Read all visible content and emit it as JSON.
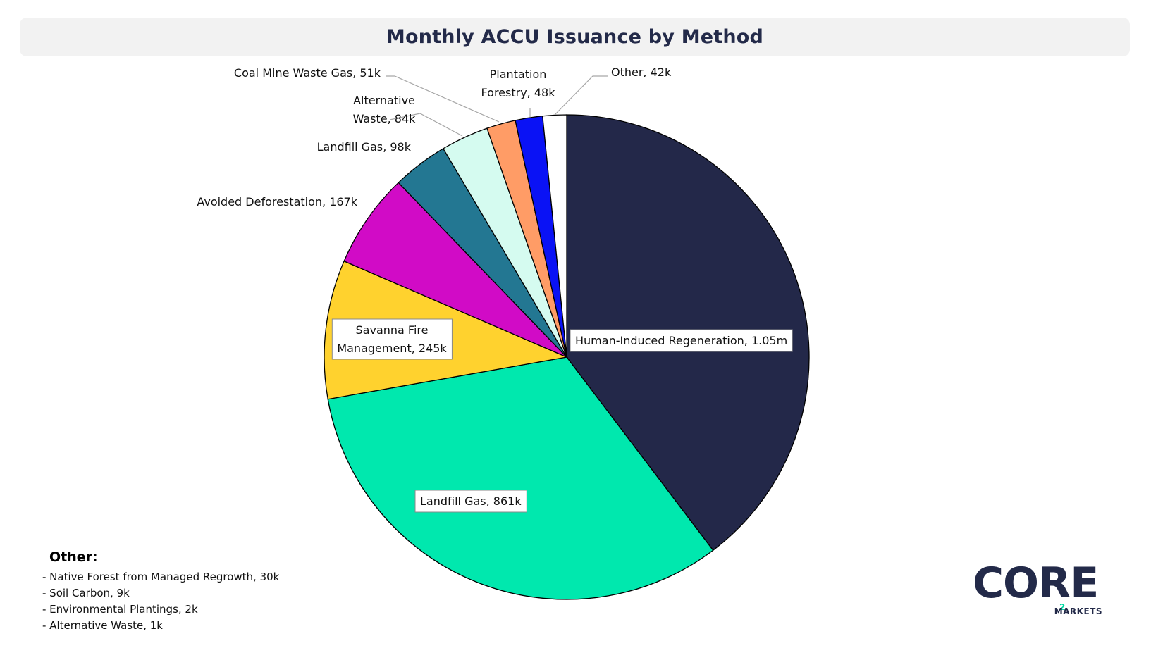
{
  "title": "Monthly ACCU Issuance by Method",
  "chart_data": {
    "type": "pie",
    "title": "Monthly ACCU Issuance by Method",
    "start": "12 o'clock",
    "direction": "clockwise",
    "slices": [
      {
        "name": "Human-Induced Regeneration",
        "value": 1050000,
        "label": "Human-Induced Regeneration, 1.05m",
        "color": "#232849"
      },
      {
        "name": "Landfill Gas",
        "value": 861000,
        "label": "Landfill Gas, 861k",
        "color": "#00e8ae"
      },
      {
        "name": "Savanna Fire Management",
        "value": 245000,
        "label": "Savanna Fire Management, 245k",
        "label_lines": [
          "Savanna Fire",
          "Management, 245k"
        ],
        "color": "#ffd22e"
      },
      {
        "name": "Avoided Deforestation",
        "value": 167000,
        "label": "Avoided Deforestation, 167k",
        "color": "#d10bc6"
      },
      {
        "name": "Landfill Gas",
        "value": 98000,
        "label": "Landfill Gas, 98k",
        "color": "#237792"
      },
      {
        "name": "Alternative Waste",
        "value": 84000,
        "label": "Alternative Waste, 84k",
        "label_lines": [
          "Alternative",
          "Waste, 84k"
        ],
        "color": "#d5fbf0"
      },
      {
        "name": "Coal Mine Waste Gas",
        "value": 51000,
        "label": "Coal Mine Waste Gas, 51k",
        "color": "#ff9c66"
      },
      {
        "name": "Plantation Forestry",
        "value": 48000,
        "label": "Plantation Forestry, 48k",
        "label_lines": [
          "Plantation",
          "Forestry, 48k"
        ],
        "color": "#0a12f5"
      },
      {
        "name": "Other",
        "value": 42000,
        "label": "Other, 42k",
        "color": "#ffffff"
      }
    ]
  },
  "other_note": {
    "heading": "Other:",
    "items": [
      "- Native Forest from Managed Regrowth, 30k",
      "- Soil Carbon, 9k",
      "- Environmental Plantings, 2k",
      "- Alternative Waste, 1k"
    ]
  },
  "logo": {
    "wordmark": "CORE",
    "subscript": "2",
    "tagline": "MARKETS",
    "colors": {
      "dark": "#232a49",
      "accent": "#00d9a3"
    }
  }
}
